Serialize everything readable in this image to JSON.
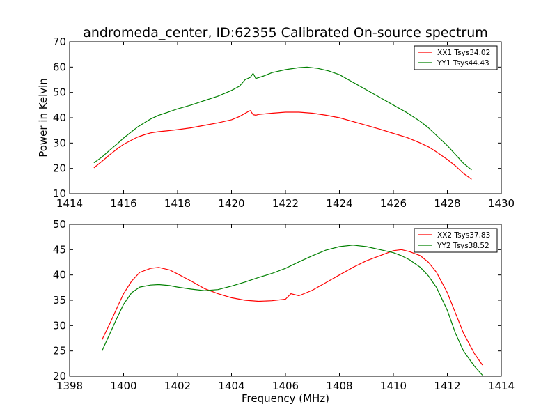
{
  "window": {
    "title": ""
  },
  "chart_data": [
    {
      "type": "line",
      "title": "andromeda_center, ID:62355 Calibrated On-source spectrum",
      "xlabel": "",
      "ylabel": "Power in Kelvin",
      "xlim": [
        1414,
        1430
      ],
      "ylim": [
        10,
        70
      ],
      "xticks": [
        "1414",
        "1416",
        "1418",
        "1420",
        "1422",
        "1424",
        "1426",
        "1428",
        "1430"
      ],
      "yticks": [
        "10",
        "20",
        "30",
        "40",
        "50",
        "60",
        "70"
      ],
      "grid": false,
      "legend_position": "top-right",
      "series": [
        {
          "name": "XX1 Tsys34.02",
          "color": "#ff0000",
          "x": [
            1414.9,
            1415.2,
            1415.5,
            1415.8,
            1416.0,
            1416.3,
            1416.5,
            1416.8,
            1417.0,
            1417.3,
            1417.6,
            1418.0,
            1418.5,
            1419.0,
            1419.5,
            1420.0,
            1420.3,
            1420.6,
            1420.7,
            1420.8,
            1420.9,
            1421.0,
            1421.5,
            1422.0,
            1422.5,
            1423.0,
            1423.5,
            1424.0,
            1424.5,
            1425.0,
            1425.5,
            1426.0,
            1426.5,
            1427.0,
            1427.3,
            1427.6,
            1428.0,
            1428.3,
            1428.6,
            1428.9
          ],
          "values": [
            20.2,
            22.8,
            25.5,
            28.0,
            29.5,
            31.2,
            32.3,
            33.4,
            34.0,
            34.5,
            34.8,
            35.3,
            36.0,
            37.0,
            38.0,
            39.2,
            40.5,
            42.3,
            42.8,
            41.2,
            41.0,
            41.3,
            41.8,
            42.2,
            42.2,
            41.8,
            41.0,
            40.0,
            38.5,
            37.0,
            35.5,
            33.8,
            32.2,
            30.0,
            28.5,
            26.5,
            23.5,
            21.0,
            18.0,
            15.7
          ]
        },
        {
          "name": "YY1 Tsys44.43",
          "color": "#008000",
          "x": [
            1414.9,
            1415.2,
            1415.5,
            1415.8,
            1416.0,
            1416.3,
            1416.5,
            1416.8,
            1417.0,
            1417.3,
            1417.6,
            1418.0,
            1418.5,
            1419.0,
            1419.5,
            1420.0,
            1420.3,
            1420.5,
            1420.7,
            1420.8,
            1420.9,
            1421.2,
            1421.5,
            1422.0,
            1422.5,
            1422.8,
            1423.2,
            1423.6,
            1424.0,
            1424.5,
            1425.0,
            1425.5,
            1426.0,
            1426.5,
            1427.0,
            1427.3,
            1427.6,
            1428.0,
            1428.3,
            1428.6,
            1428.9
          ],
          "values": [
            22.2,
            24.5,
            27.3,
            30.0,
            32.0,
            34.5,
            36.2,
            38.2,
            39.5,
            41.0,
            42.0,
            43.5,
            45.0,
            46.8,
            48.5,
            50.8,
            52.5,
            55.0,
            56.0,
            57.5,
            55.5,
            56.5,
            57.8,
            59.0,
            59.8,
            60.0,
            59.5,
            58.5,
            57.0,
            54.0,
            51.0,
            48.0,
            45.0,
            42.0,
            38.5,
            36.0,
            33.0,
            29.0,
            25.5,
            22.0,
            19.4
          ]
        }
      ]
    },
    {
      "type": "line",
      "title": "",
      "xlabel": "Frequency (MHz)",
      "ylabel": "",
      "xlim": [
        1398,
        1414
      ],
      "ylim": [
        20,
        50
      ],
      "xticks": [
        "1398",
        "1400",
        "1402",
        "1404",
        "1406",
        "1408",
        "1410",
        "1412",
        "1414"
      ],
      "yticks": [
        "20",
        "25",
        "30",
        "35",
        "40",
        "45",
        "50"
      ],
      "grid": false,
      "legend_position": "top-right",
      "series": [
        {
          "name": "XX2 Tsys37.83",
          "color": "#ff0000",
          "x": [
            1399.2,
            1399.5,
            1399.8,
            1400.0,
            1400.3,
            1400.6,
            1401.0,
            1401.3,
            1401.7,
            1402.0,
            1402.5,
            1403.0,
            1403.5,
            1404.0,
            1404.5,
            1405.0,
            1405.5,
            1406.0,
            1406.2,
            1406.5,
            1407.0,
            1407.5,
            1408.0,
            1408.5,
            1409.0,
            1409.5,
            1410.0,
            1410.3,
            1410.6,
            1411.0,
            1411.3,
            1411.6,
            1412.0,
            1412.3,
            1412.6,
            1413.0,
            1413.3
          ],
          "values": [
            27.2,
            30.5,
            34.0,
            36.3,
            38.8,
            40.5,
            41.3,
            41.5,
            41.0,
            40.2,
            38.8,
            37.3,
            36.3,
            35.5,
            35.0,
            34.8,
            34.9,
            35.2,
            36.3,
            35.9,
            37.0,
            38.5,
            40.0,
            41.5,
            42.8,
            43.8,
            44.8,
            45.0,
            44.6,
            43.8,
            42.5,
            40.5,
            36.5,
            32.5,
            28.5,
            24.5,
            22.2
          ]
        },
        {
          "name": "YY2 Tsys38.52",
          "color": "#008000",
          "x": [
            1399.2,
            1399.5,
            1399.8,
            1400.0,
            1400.3,
            1400.6,
            1401.0,
            1401.3,
            1401.7,
            1402.0,
            1402.5,
            1403.0,
            1403.5,
            1404.0,
            1404.5,
            1405.0,
            1405.5,
            1406.0,
            1406.5,
            1407.0,
            1407.5,
            1408.0,
            1408.5,
            1409.0,
            1409.5,
            1410.0,
            1410.3,
            1410.6,
            1411.0,
            1411.3,
            1411.6,
            1412.0,
            1412.3,
            1412.6,
            1413.0,
            1413.3
          ],
          "values": [
            25.0,
            28.5,
            32.0,
            34.2,
            36.5,
            37.6,
            38.0,
            38.1,
            37.9,
            37.6,
            37.2,
            36.9,
            37.1,
            37.8,
            38.6,
            39.5,
            40.3,
            41.3,
            42.6,
            43.8,
            44.9,
            45.6,
            45.9,
            45.6,
            45.0,
            44.4,
            43.8,
            43.0,
            41.5,
            39.8,
            37.5,
            33.0,
            28.5,
            25.0,
            22.0,
            20.2
          ]
        }
      ]
    }
  ]
}
